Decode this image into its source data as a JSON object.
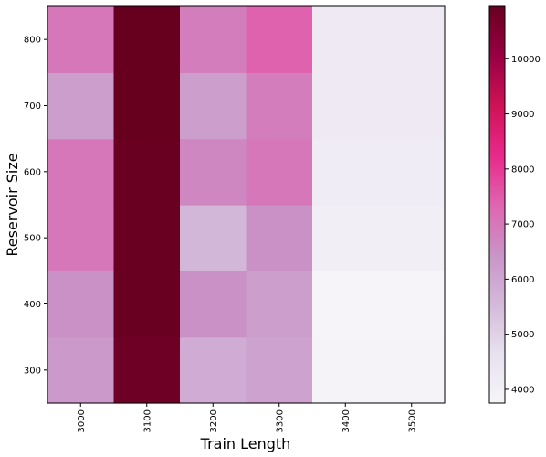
{
  "chart_data": {
    "type": "heatmap",
    "xlabel": "Train Length",
    "ylabel": "Reservoir Size",
    "x_categories": [
      "3000",
      "3100",
      "3200",
      "3300",
      "3400",
      "3500"
    ],
    "y_categories": [
      "300",
      "400",
      "500",
      "600",
      "700",
      "800"
    ],
    "values": [
      [
        6300,
        10800,
        5900,
        6100,
        3850,
        3850
      ],
      [
        6500,
        10900,
        6500,
        6200,
        3750,
        3750
      ],
      [
        7000,
        10900,
        5600,
        6500,
        4050,
        4050
      ],
      [
        7000,
        10900,
        6700,
        7000,
        4150,
        4150
      ],
      [
        6200,
        10950,
        6200,
        6900,
        4250,
        4250
      ],
      [
        7000,
        10950,
        6900,
        7400,
        4250,
        4250
      ]
    ],
    "colorbar": {
      "min": 3750,
      "max": 10950,
      "ticks": [
        "4000",
        "5000",
        "6000",
        "7000",
        "8000",
        "9000",
        "10000"
      ],
      "colormap": "PuRd"
    },
    "grid": false,
    "legend": "colorbar-right"
  }
}
